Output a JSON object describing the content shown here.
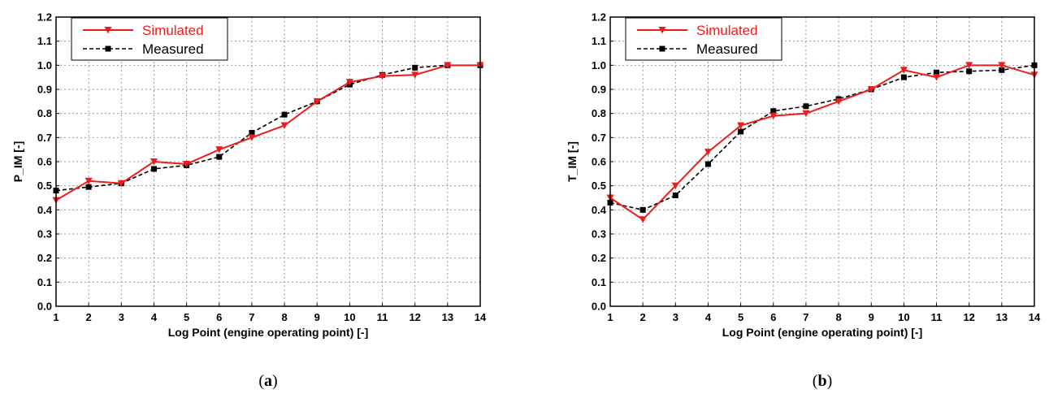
{
  "chart_data": [
    {
      "type": "line",
      "panel_label": "a",
      "caption_open": "(",
      "caption_close": ")",
      "xlabel": "Log Point (engine operating point) [-]",
      "ylabel": "P_IM [-]",
      "xlim": [
        1,
        14
      ],
      "ylim": [
        0.0,
        1.2
      ],
      "x_ticks": [
        1,
        2,
        3,
        4,
        5,
        6,
        7,
        8,
        9,
        10,
        11,
        12,
        13,
        14
      ],
      "y_ticks": [
        "0.0",
        "0.1",
        "0.2",
        "0.3",
        "0.4",
        "0.5",
        "0.6",
        "0.7",
        "0.8",
        "0.9",
        "1.0",
        "1.1",
        "1.2"
      ],
      "grid": true,
      "legend_position": "top-left",
      "x": [
        1,
        2,
        3,
        4,
        5,
        6,
        7,
        8,
        9,
        10,
        11,
        12,
        13,
        14
      ],
      "series": [
        {
          "name": "Simulated",
          "color": "#ee1c1c",
          "marker": "triangle-down",
          "line": "solid",
          "values": [
            0.44,
            0.52,
            0.51,
            0.6,
            0.59,
            0.65,
            0.7,
            0.75,
            0.85,
            0.93,
            0.955,
            0.96,
            1.0,
            1.0
          ]
        },
        {
          "name": "Measured",
          "color": "#000000",
          "marker": "square",
          "line": "dashed",
          "values": [
            0.48,
            0.495,
            0.51,
            0.57,
            0.585,
            0.62,
            0.72,
            0.795,
            0.85,
            0.92,
            0.96,
            0.99,
            1.0,
            1.0
          ]
        }
      ]
    },
    {
      "type": "line",
      "panel_label": "b",
      "caption_open": "(",
      "caption_close": ")",
      "xlabel": "Log Point (engine operating point) [-]",
      "ylabel": "T_IM [-]",
      "xlim": [
        1,
        14
      ],
      "ylim": [
        0.0,
        1.2
      ],
      "x_ticks": [
        1,
        2,
        3,
        4,
        5,
        6,
        7,
        8,
        9,
        10,
        11,
        12,
        13,
        14
      ],
      "y_ticks": [
        "0.0",
        "0.1",
        "0.2",
        "0.3",
        "0.4",
        "0.5",
        "0.6",
        "0.7",
        "0.8",
        "0.9",
        "1.0",
        "1.1",
        "1.2"
      ],
      "grid": true,
      "legend_position": "top-left",
      "x": [
        1,
        2,
        3,
        4,
        5,
        6,
        7,
        8,
        9,
        10,
        11,
        12,
        13,
        14
      ],
      "series": [
        {
          "name": "Simulated",
          "color": "#ee1c1c",
          "marker": "triangle-down",
          "line": "solid",
          "values": [
            0.45,
            0.36,
            0.5,
            0.64,
            0.75,
            0.79,
            0.8,
            0.85,
            0.9,
            0.98,
            0.95,
            1.0,
            1.0,
            0.96
          ]
        },
        {
          "name": "Measured",
          "color": "#000000",
          "marker": "square",
          "line": "dashed",
          "values": [
            0.43,
            0.4,
            0.46,
            0.59,
            0.725,
            0.81,
            0.83,
            0.86,
            0.9,
            0.95,
            0.97,
            0.975,
            0.98,
            1.0
          ]
        }
      ]
    }
  ]
}
